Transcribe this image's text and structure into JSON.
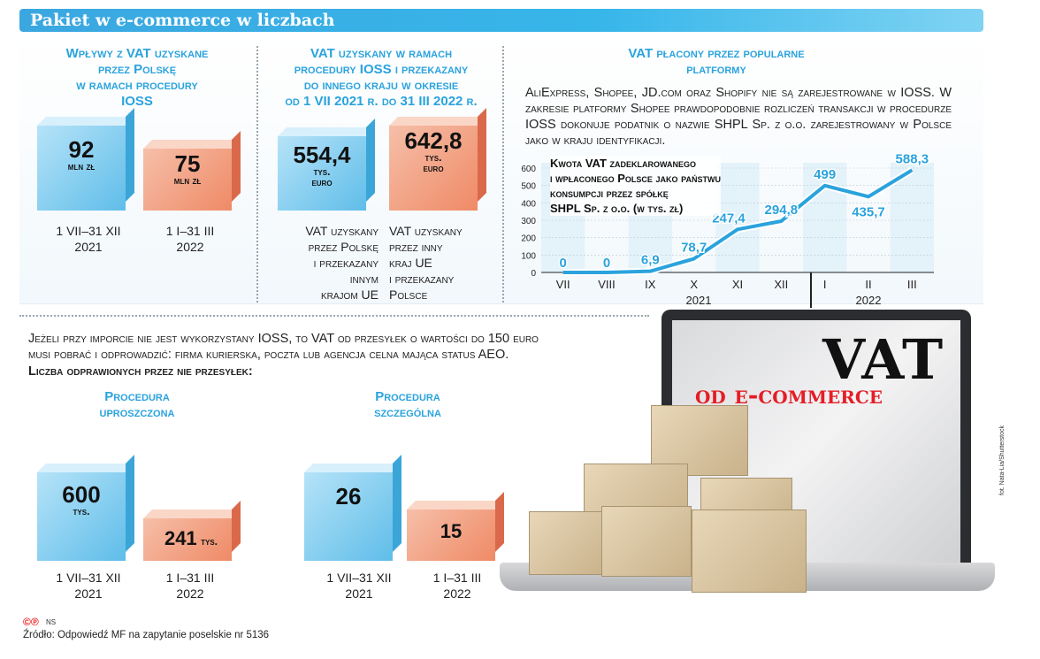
{
  "header": {
    "title": "Pakiet w e-commerce w liczbach"
  },
  "panel1": {
    "heading": [
      "Wpływy z VAT uzyskane",
      "przez Polskę",
      "w ramach procedury",
      "IOSS"
    ],
    "bars": [
      {
        "value": "92",
        "unit": "mln zł",
        "label_line1": "1 VII–31 XII",
        "label_line2": "2021",
        "color": "blue"
      },
      {
        "value": "75",
        "unit": "mln zł",
        "label_line1": "1 I–31 III",
        "label_line2": "2022",
        "color": "red"
      }
    ]
  },
  "panel2": {
    "heading": [
      "VAT uzyskany w ramach",
      "procedury IOSS i przekazany",
      "do innego kraju w okresie",
      "od 1 VII 2021 r. do 31 III 2022 r."
    ],
    "bars": [
      {
        "value": "554,4",
        "unit1": "tys.",
        "unit2": "euro",
        "caption": [
          "VAT uzyskany",
          "przez Polskę",
          "i przekazany",
          "innym",
          "krajom UE"
        ],
        "color": "blue"
      },
      {
        "value": "642,8",
        "unit1": "tys.",
        "unit2": "euro",
        "caption": [
          "VAT uzyskany",
          "przez inny",
          "kraj UE",
          "i przekazany",
          "Polsce"
        ],
        "color": "red"
      }
    ]
  },
  "panel3": {
    "heading": [
      "VAT płacony przez popularne",
      "platformy"
    ],
    "paragraph": "AliExpress, Shopee, JD.com oraz Shopify nie są zarejestrowane w IOSS. W zakresie platformy Shopee prawdopodobnie rozliczeń transakcji w procedurze IOSS dokonuje podatnik o nazwie SHPL Sp. z o.o. zarejestrowany w Polsce jako w kraju identyfikacji."
  },
  "chart_data": [
    {
      "type": "line",
      "title": "Kwota VAT zadeklarowanego i wpłaconego Polsce jako państwu konsumpcji przez spółkę SHPL Sp. z o.o. (w tys. zł)",
      "title_lines": [
        "Kwota VAT zadeklarowanego",
        "i wpłaconego Polsce jako państwu",
        "konsumpcji przez spółkę",
        "SHPL Sp. z o.o. (w tys. zł)"
      ],
      "categories": [
        "VII",
        "VIII",
        "IX",
        "X",
        "XI",
        "XII",
        "I",
        "II",
        "III"
      ],
      "year_labels": [
        "2021",
        "2022"
      ],
      "values": [
        0,
        0,
        6.9,
        78.7,
        247.4,
        294.8,
        499,
        435.7,
        588.3
      ],
      "value_labels": [
        "0",
        "0",
        "6,9",
        "78,7",
        "247,4",
        "294,8",
        "499",
        "435,7",
        "588,3"
      ],
      "yticks": [
        "0",
        "100",
        "200",
        "300",
        "400",
        "500",
        "600"
      ],
      "ylim": [
        0,
        600
      ],
      "line_color": "#2aa3dd"
    },
    {
      "type": "bar",
      "title": "Procedura uproszczona",
      "categories": [
        "1 VII–31 XII 2021",
        "1 I–31 III 2022"
      ],
      "values": [
        600,
        241
      ],
      "unit": "tys."
    },
    {
      "type": "bar",
      "title": "Procedura szczególna",
      "categories": [
        "1 VII–31 XII 2021",
        "1 I–31 III 2022"
      ],
      "values": [
        26,
        15
      ]
    }
  ],
  "lower": {
    "intro": "Jeżeli przy imporcie nie jest wykorzystany IOSS, to VAT od przesyłek o wartości do 150 euro musi pobrać i odprowadzić: firma kurierska, poczta lub agencja celna mająca status AEO.",
    "intro_line1": "Jeżeli przy imporcie nie jest wykorzystany IOSS, to VAT od przesyłek o wartości do 150 euro",
    "intro_line2": "musi pobrać i odprowadzić: firma kurierska, poczta lub agencja celna mająca status AEO.",
    "count_label": "Liczba odprawionych przez nie przesyłek:",
    "proc1": {
      "heading": [
        "Procedura",
        "uproszczona"
      ],
      "bars": [
        {
          "value": "600",
          "unit": "tys.",
          "label_line1": "1 VII–31 XII",
          "label_line2": "2021"
        },
        {
          "value": "241",
          "unit": "tys.",
          "label_line1": "1 I–31 III",
          "label_line2": "2022"
        }
      ]
    },
    "proc2": {
      "heading": [
        "Procedura",
        "szczególna"
      ],
      "bars": [
        {
          "value": "26",
          "label_line1": "1 VII–31 XII",
          "label_line2": "2021"
        },
        {
          "value": "15",
          "label_line1": "1 I–31 III",
          "label_line2": "2022"
        }
      ]
    }
  },
  "illustration": {
    "vat": "VAT",
    "subtitle": "od e-commerce",
    "credit": "fot. Nata-Lia/Shutterstock"
  },
  "footer": {
    "logo": "©℗",
    "ns": "NS",
    "source": "Źródło: Odpowiedź MF na zapytanie poselskie nr 5136"
  },
  "colors": {
    "accent": "#2aa3dd",
    "blue_bar": "#5fbde9",
    "red_bar": "#ef8a66",
    "brand_red": "#e41e26"
  }
}
